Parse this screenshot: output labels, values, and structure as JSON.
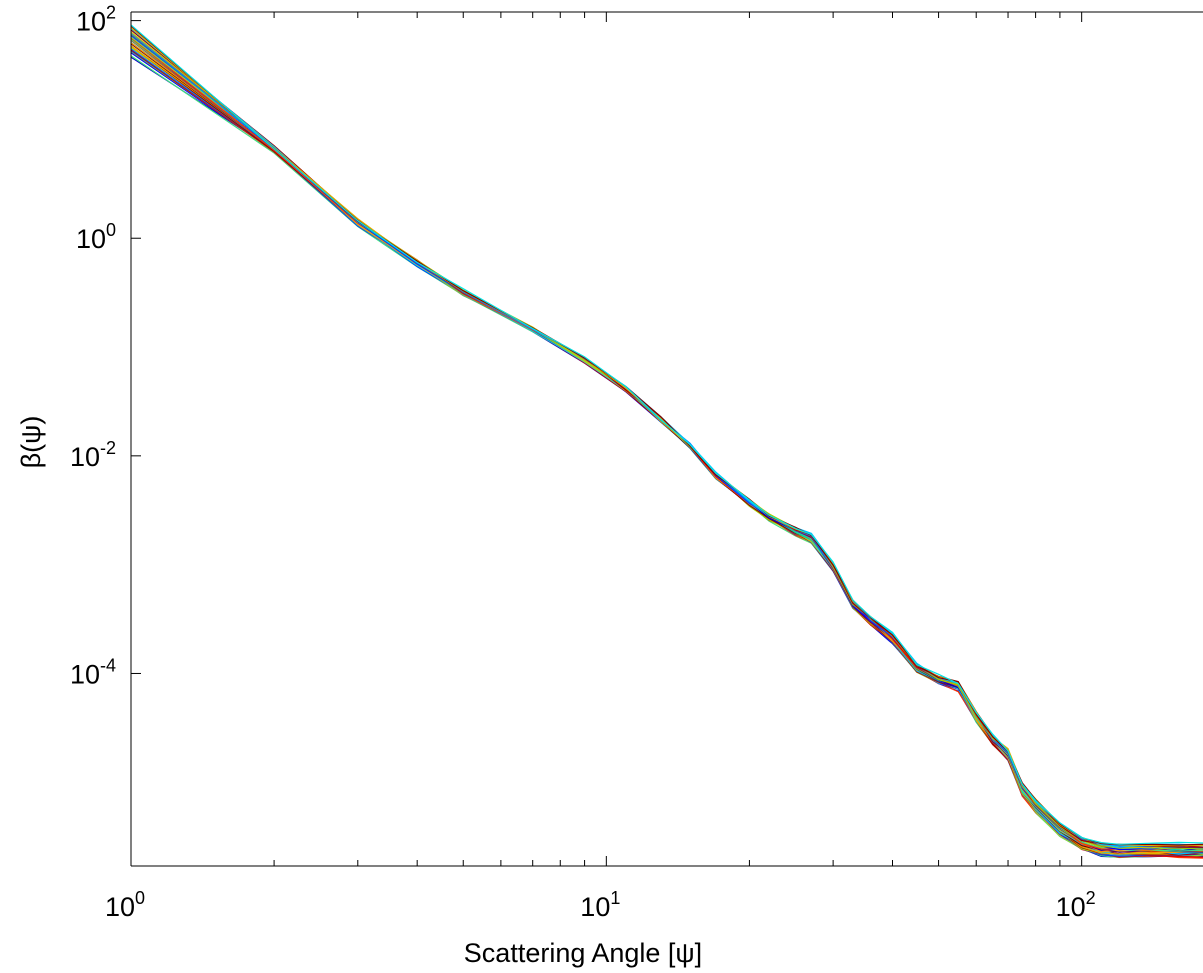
{
  "chart_data": {
    "type": "line",
    "title": "",
    "xlabel": "Scattering Angle [ψ]",
    "ylabel": "β(ψ)",
    "x_scale": "log",
    "y_scale": "log",
    "xlim": [
      1,
      180
    ],
    "ylim": [
      1.7e-06,
      120
    ],
    "grid": false,
    "legend": "none",
    "x_ticks": [
      {
        "value": 1,
        "base": "10",
        "exp": "0"
      },
      {
        "value": 10,
        "base": "10",
        "exp": "1"
      },
      {
        "value": 100,
        "base": "10",
        "exp": "2"
      }
    ],
    "y_ticks": [
      {
        "value": 100,
        "base": "10",
        "exp": "2"
      },
      {
        "value": 1,
        "base": "10",
        "exp": "0"
      },
      {
        "value": 0.01,
        "base": "10",
        "exp": "-2"
      },
      {
        "value": 0.0001,
        "base": "10",
        "exp": "-4"
      }
    ],
    "x": [
      1,
      2,
      3,
      4,
      5,
      7,
      9,
      11,
      13,
      15,
      17,
      20,
      22,
      25,
      27,
      30,
      33,
      36,
      40,
      45,
      50,
      55,
      60,
      65,
      70,
      75,
      80,
      90,
      100,
      110,
      120,
      140,
      160,
      180
    ],
    "series_count": 36,
    "colors": [
      "#0000c8",
      "#0000ff",
      "#0040ff",
      "#0080ff",
      "#00bfff",
      "#00e5e5",
      "#00d0a0",
      "#40e080",
      "#80e040",
      "#a0d000",
      "#c8c800",
      "#e0b000",
      "#ff9900",
      "#ff6600",
      "#ff3300",
      "#e00000",
      "#c00000",
      "#990000",
      "#7f0000",
      "#5a0070"
    ],
    "series": [
      {
        "values": [
          88.0,
          6.9,
          1.48,
          0.62,
          0.33,
          0.153,
          0.078,
          0.042,
          0.0225,
          0.0128,
          0.0069,
          0.0039,
          0.0029,
          0.0022,
          0.0019,
          0.00102,
          0.00046,
          0.00033,
          0.00023,
          0.000122,
          9.5e-05,
          8.4e-05,
          4.4e-05,
          2.7e-05,
          2e-05,
          9.6e-06,
          7e-06,
          4.2e-06,
          3.1e-06,
          2.75e-06,
          2.7e-06,
          2.7e-06,
          2.7e-06,
          2.7e-06
        ]
      },
      {
        "values": [
          48.0,
          6.2,
          1.32,
          0.56,
          0.3,
          0.143,
          0.073,
          0.04,
          0.021,
          0.0119,
          0.0062,
          0.0035,
          0.0026,
          0.0019,
          0.0016,
          0.00088,
          0.0004,
          0.00028,
          0.00019,
          0.000103,
          8e-05,
          7e-05,
          3.6e-05,
          2.2e-05,
          1.6e-05,
          7.6e-06,
          5.4e-06,
          3.2e-06,
          2.4e-06,
          2.1e-06,
          2.05e-06,
          2.05e-06,
          2.05e-06,
          2.05e-06
        ]
      }
    ]
  }
}
